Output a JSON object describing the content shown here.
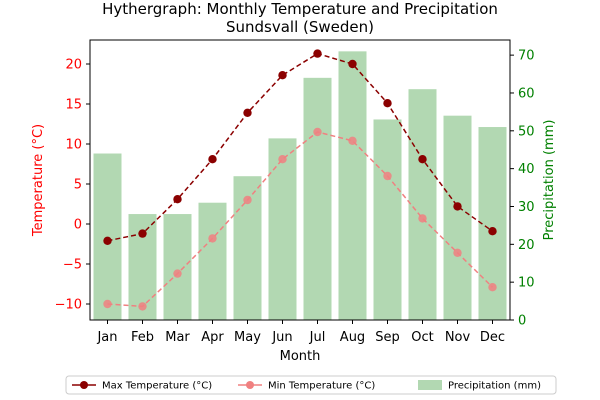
{
  "chart_data": {
    "type": "bar",
    "title": "Hythergraph: Monthly Temperature and Precipitation",
    "subtitle": "Sundsvall (Sweden)",
    "xlabel": "Month",
    "ylabel_left": "Temperature (°C)",
    "ylabel_right": "Precipitation (mm)",
    "categories": [
      "Jan",
      "Feb",
      "Mar",
      "Apr",
      "May",
      "Jun",
      "Jul",
      "Aug",
      "Sep",
      "Oct",
      "Nov",
      "Dec"
    ],
    "ylim_left": [
      -12,
      23
    ],
    "ylim_right": [
      0,
      74
    ],
    "yticks_left": [
      -10,
      -5,
      0,
      5,
      10,
      15,
      20
    ],
    "yticks_left_labels": [
      "−10",
      "−5",
      "0",
      "5",
      "10",
      "15",
      "20"
    ],
    "yticks_right": [
      0,
      10,
      20,
      30,
      40,
      50,
      60,
      70
    ],
    "series": [
      {
        "name": "Max Temperature (°C)",
        "axis": "left",
        "kind": "line",
        "color": "#8b0000",
        "values": [
          -2.1,
          -1.2,
          3.1,
          8.1,
          13.9,
          18.6,
          21.3,
          20.0,
          15.1,
          8.1,
          2.2,
          -0.9
        ]
      },
      {
        "name": "Min Temperature (°C)",
        "axis": "left",
        "kind": "line",
        "color": "#f08080",
        "values": [
          -10.0,
          -10.3,
          -6.2,
          -1.8,
          3.0,
          8.1,
          11.5,
          10.4,
          6.0,
          0.7,
          -3.6,
          -7.9
        ]
      },
      {
        "name": "Precipitation (mm)",
        "axis": "right",
        "kind": "bar",
        "color": "#b2d8b2",
        "values": [
          44,
          28,
          28,
          31,
          38,
          48,
          64,
          71,
          53,
          61,
          54,
          51
        ]
      }
    ],
    "colors": {
      "left_axis": "#ff0000",
      "right_axis": "#008000"
    },
    "legend_position": "bottom-center",
    "grid": false
  }
}
